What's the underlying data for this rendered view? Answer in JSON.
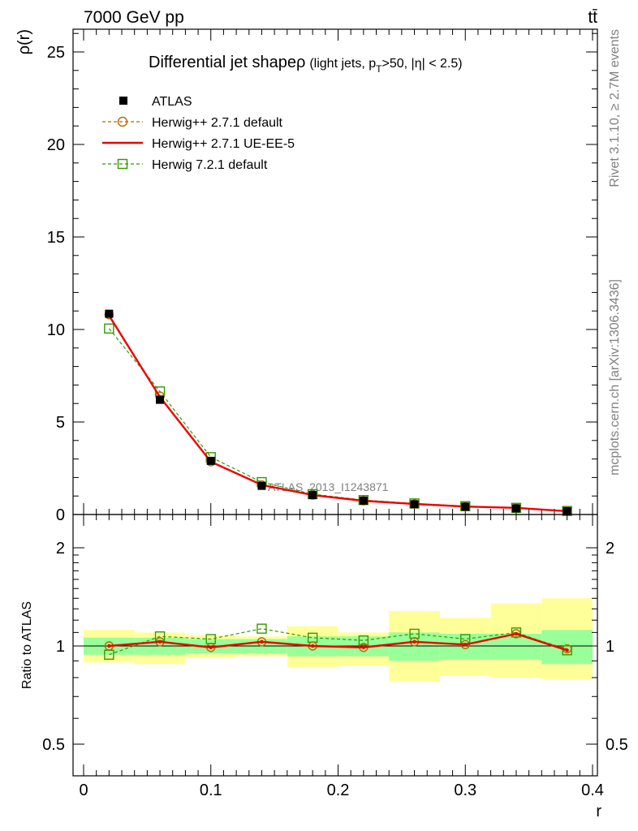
{
  "header": {
    "left": "7000 GeV pp",
    "right": "tt̄"
  },
  "side_labels": {
    "rivet": "Rivet 3.1.10, ≥ 2.7M events",
    "mcplots": "mcplots.cern.ch [arXiv:1306.3436]"
  },
  "colors": {
    "atlas": "#000000",
    "herwig_default": "#b36b00",
    "herwig_ueee5": "#ee0000",
    "herwig7": "#339900",
    "band_inner": "#99ff99",
    "band_outer": "#ffff99"
  },
  "chart_data": {
    "type": "line",
    "title_main": "Differential jet shapeρ",
    "title_detail": "(light jets, p",
    "title_sub": "T",
    "title_tail": ">50, |η| < 2.5)",
    "watermark": "ATLAS_2013_I1243871",
    "x": [
      0.02,
      0.06,
      0.1,
      0.14,
      0.18,
      0.22,
      0.26,
      0.3,
      0.34,
      0.38
    ],
    "xlim": [
      0,
      0.4
    ],
    "xlabel": "r",
    "x_ticks": [
      "0",
      "0.1",
      "0.2",
      "0.3",
      "0.4"
    ],
    "main": {
      "ylabel": "ρ(r)",
      "ylim": [
        0,
        25
      ],
      "y_ticks": [
        "0",
        "5",
        "10",
        "15",
        "20",
        "25"
      ]
    },
    "ratio": {
      "ylabel": "Ratio to ATLAS",
      "ylim": [
        0.5,
        2.2
      ],
      "y_ticks": [
        "0.5",
        "1",
        "2"
      ]
    },
    "series": [
      {
        "name": "ATLAS",
        "values": [
          10.85,
          6.2,
          2.9,
          1.55,
          1.05,
          0.75,
          0.55,
          0.42,
          0.33,
          0.18
        ],
        "ratio": [
          1.0,
          1.0,
          1.0,
          1.0,
          1.0,
          1.0,
          1.0,
          1.0,
          1.0,
          1.0
        ]
      },
      {
        "name": "Herwig++ 2.7.1 default",
        "values": [
          10.8,
          6.4,
          2.85,
          1.6,
          1.05,
          0.74,
          0.57,
          0.43,
          0.36,
          0.18
        ],
        "ratio": [
          1.0,
          1.03,
          0.99,
          1.03,
          1.0,
          0.99,
          1.03,
          1.01,
          1.09,
          0.98
        ]
      },
      {
        "name": "Herwig++ 2.7.1 UE-EE-5",
        "values": [
          10.75,
          6.35,
          2.85,
          1.6,
          1.05,
          0.74,
          0.57,
          0.43,
          0.36,
          0.18
        ],
        "ratio": [
          1.0,
          1.03,
          0.99,
          1.03,
          1.0,
          0.99,
          1.03,
          1.01,
          1.09,
          0.97
        ]
      },
      {
        "name": "Herwig 7.2.1 default",
        "values": [
          10.05,
          6.65,
          3.1,
          1.75,
          1.1,
          0.78,
          0.6,
          0.45,
          0.36,
          0.19
        ],
        "ratio": [
          0.94,
          1.07,
          1.05,
          1.13,
          1.06,
          1.04,
          1.09,
          1.05,
          1.1,
          0.97
        ]
      }
    ],
    "bands": {
      "inner": [
        [
          0.94,
          1.06
        ],
        [
          0.94,
          1.06
        ],
        [
          0.95,
          1.05
        ],
        [
          0.95,
          1.05
        ],
        [
          0.93,
          1.07
        ],
        [
          0.93,
          1.07
        ],
        [
          0.9,
          1.1
        ],
        [
          0.91,
          1.09
        ],
        [
          0.91,
          1.09
        ],
        [
          0.88,
          1.12
        ]
      ],
      "outer": [
        [
          0.89,
          1.12
        ],
        [
          0.88,
          1.1
        ],
        [
          0.92,
          1.08
        ],
        [
          0.93,
          1.07
        ],
        [
          0.86,
          1.15
        ],
        [
          0.87,
          1.1
        ],
        [
          0.78,
          1.28
        ],
        [
          0.81,
          1.22
        ],
        [
          0.8,
          1.35
        ],
        [
          0.79,
          1.4
        ]
      ]
    }
  }
}
